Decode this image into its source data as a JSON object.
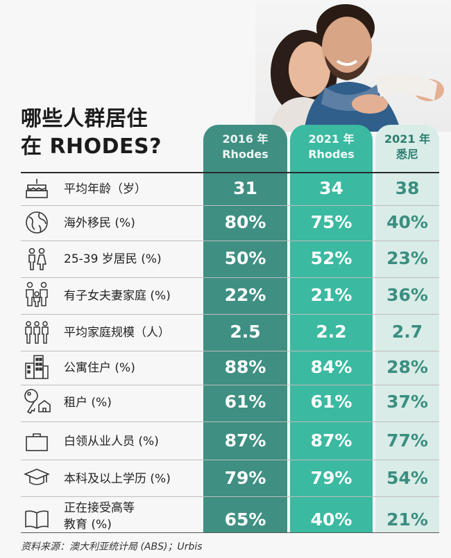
{
  "title": {
    "line1": "哪些人群居住",
    "line2": "在 RHODES?"
  },
  "columns": [
    {
      "line1": "2016 年",
      "line2": "Rhodes"
    },
    {
      "line1": "2021 年",
      "line2": "Rhodes"
    },
    {
      "line1": "2021 年",
      "line2": "悉尼"
    }
  ],
  "rows": [
    {
      "icon": "birthday-cake-icon",
      "label": "平均年龄（岁）",
      "values": [
        "31",
        "34",
        "38"
      ]
    },
    {
      "icon": "globe-icon",
      "label": "海外移民 (%)",
      "values": [
        "80%",
        "75%",
        "40%"
      ]
    },
    {
      "icon": "couple-icon",
      "label": "25-39 岁居民 (%)",
      "values": [
        "50%",
        "52%",
        "23%"
      ]
    },
    {
      "icon": "family-icon",
      "label": "有子女夫妻家庭 (%)",
      "values": [
        "22%",
        "21%",
        "36%"
      ]
    },
    {
      "icon": "household-icon",
      "label": "平均家庭规模（人）",
      "values": [
        "2.5",
        "2.2",
        "2.7"
      ]
    },
    {
      "icon": "apartment-icon",
      "label": "公寓住户 (%)",
      "values": [
        "88%",
        "84%",
        "28%"
      ]
    },
    {
      "icon": "key-icon",
      "label": "租户 (%)",
      "values": [
        "61%",
        "61%",
        "37%"
      ]
    },
    {
      "icon": "briefcase-icon",
      "label": "白领从业人员 (%)",
      "values": [
        "87%",
        "87%",
        "77%"
      ]
    },
    {
      "icon": "graduation-cap-icon",
      "label": "本科及以上学历 (%)",
      "values": [
        "79%",
        "79%",
        "54%"
      ]
    },
    {
      "icon": "book-icon",
      "label_line1": "正在接受高等",
      "label_line2": "教育 (%)",
      "values": [
        "65%",
        "40%",
        "21%"
      ]
    }
  ],
  "source": "资料来源：澳大利亚统计局 (ABS)；Urbis"
}
